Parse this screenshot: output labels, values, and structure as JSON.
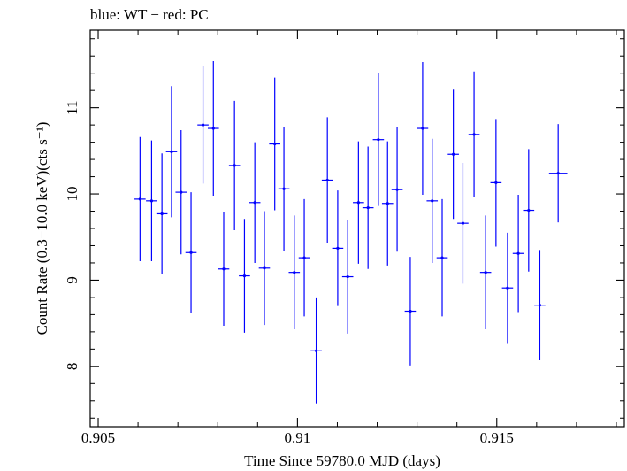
{
  "chart_data": {
    "type": "scatter",
    "title": "blue: WT − red: PC",
    "xlabel": "Time Since 59780.0 MJD (days)",
    "ylabel": "Count Rate (0.3−10.0 keV)(cts s⁻¹)",
    "xlim": [
      0.9048,
      0.9182
    ],
    "ylim": [
      7.3,
      11.9
    ],
    "x_ticks": [
      0.905,
      0.91,
      0.915
    ],
    "x_tick_labels": [
      "0.905",
      "0.91",
      "0.915"
    ],
    "y_ticks": [
      8,
      9,
      10,
      11
    ],
    "y_tick_labels": [
      "8",
      "9",
      "10",
      "11"
    ],
    "grid": false,
    "colors": {
      "WT": "#0000ff",
      "axes": "#000000"
    },
    "series": [
      {
        "name": "WT",
        "x_halfwidth": 0.00014,
        "points": [
          {
            "x": 0.90605,
            "y": 9.94,
            "yerr": 0.72
          },
          {
            "x": 0.90634,
            "y": 9.92,
            "yerr": 0.7
          },
          {
            "x": 0.9066,
            "y": 9.77,
            "yerr": 0.7
          },
          {
            "x": 0.90684,
            "y": 10.49,
            "yerr": 0.76
          },
          {
            "x": 0.90708,
            "y": 10.02,
            "yerr": 0.72
          },
          {
            "x": 0.90733,
            "y": 9.32,
            "yerr": 0.7
          },
          {
            "x": 0.90763,
            "y": 10.8,
            "yerr": 0.68
          },
          {
            "x": 0.90789,
            "y": 10.76,
            "yerr": 0.78
          },
          {
            "x": 0.90815,
            "y": 9.13,
            "yerr": 0.66
          },
          {
            "x": 0.90842,
            "y": 10.33,
            "yerr": 0.75
          },
          {
            "x": 0.90867,
            "y": 9.05,
            "yerr": 0.66
          },
          {
            "x": 0.90893,
            "y": 9.9,
            "yerr": 0.7
          },
          {
            "x": 0.90917,
            "y": 9.14,
            "yerr": 0.66
          },
          {
            "x": 0.90943,
            "y": 10.58,
            "yerr": 0.77
          },
          {
            "x": 0.90966,
            "y": 10.06,
            "yerr": 0.72
          },
          {
            "x": 0.90992,
            "y": 9.09,
            "yerr": 0.66
          },
          {
            "x": 0.91017,
            "y": 9.26,
            "yerr": 0.68
          },
          {
            "x": 0.91047,
            "y": 8.18,
            "yerr": 0.61
          },
          {
            "x": 0.91075,
            "y": 10.16,
            "yerr": 0.73
          },
          {
            "x": 0.91101,
            "y": 9.37,
            "yerr": 0.67
          },
          {
            "x": 0.91126,
            "y": 9.04,
            "yerr": 0.66
          },
          {
            "x": 0.91153,
            "y": 9.9,
            "yerr": 0.71
          },
          {
            "x": 0.91177,
            "y": 9.84,
            "yerr": 0.71
          },
          {
            "x": 0.91203,
            "y": 10.63,
            "yerr": 0.77
          },
          {
            "x": 0.91226,
            "y": 9.89,
            "yerr": 0.72
          },
          {
            "x": 0.9125,
            "y": 10.05,
            "yerr": 0.72
          },
          {
            "x": 0.91283,
            "y": 8.64,
            "yerr": 0.63
          },
          {
            "x": 0.91314,
            "y": 10.76,
            "yerr": 0.77
          },
          {
            "x": 0.91338,
            "y": 9.92,
            "yerr": 0.72
          },
          {
            "x": 0.91363,
            "y": 9.26,
            "yerr": 0.68
          },
          {
            "x": 0.91391,
            "y": 10.46,
            "yerr": 0.75
          },
          {
            "x": 0.91415,
            "y": 9.66,
            "yerr": 0.7
          },
          {
            "x": 0.91443,
            "y": 10.69,
            "yerr": 0.73
          },
          {
            "x": 0.91472,
            "y": 9.09,
            "yerr": 0.66
          },
          {
            "x": 0.91498,
            "y": 10.13,
            "yerr": 0.74
          },
          {
            "x": 0.91527,
            "y": 8.91,
            "yerr": 0.64
          },
          {
            "x": 0.91554,
            "y": 9.31,
            "yerr": 0.68
          },
          {
            "x": 0.9158,
            "y": 9.81,
            "yerr": 0.71
          },
          {
            "x": 0.91608,
            "y": 8.71,
            "yerr": 0.64
          },
          {
            "x": 0.91654,
            "y": 10.24,
            "yerr": 0.57,
            "xerr": 0.00023
          }
        ]
      }
    ]
  }
}
